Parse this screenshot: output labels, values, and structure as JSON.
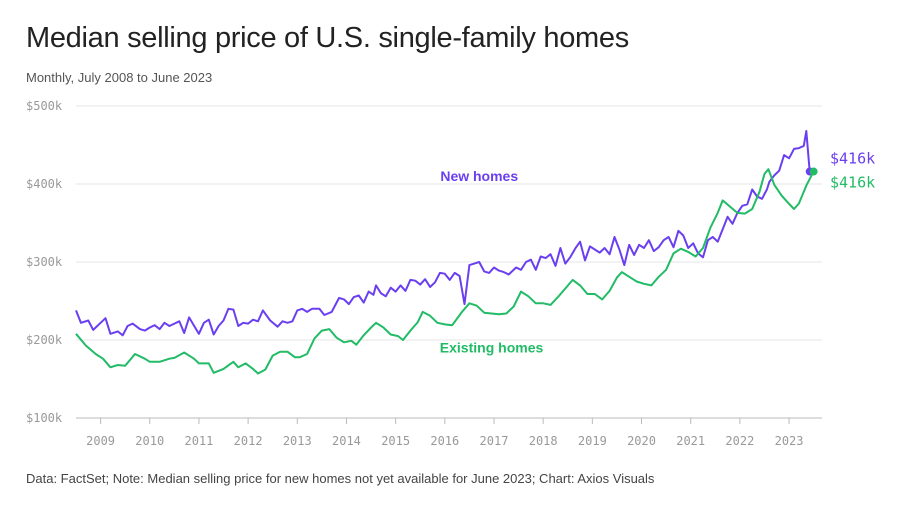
{
  "header": {
    "title": "Median selling price of U.S. single-family homes",
    "subtitle": "Monthly, July 2008 to June 2023"
  },
  "footer": {
    "note": "Data: FactSet; Note: Median selling price for new homes not yet available for June 2023; Chart: Axios Visuals"
  },
  "colors": {
    "new_homes": "#6a3ff0",
    "existing_homes": "#22bb66",
    "grid": "#e6e6e6",
    "axis": "#bbbbbb"
  },
  "chart_data": {
    "type": "line",
    "title": "Median selling price of U.S. single-family homes",
    "subtitle": "Monthly, July 2008 to June 2023",
    "ylim": [
      100,
      500
    ],
    "y_ticks": [
      100,
      200,
      300,
      400,
      500
    ],
    "y_tick_labels": [
      "$100k",
      "$200k",
      "$300k",
      "$400k",
      "$500k"
    ],
    "xlim": [
      2008.5,
      2023.67
    ],
    "x_ticks": [
      2009,
      2010,
      2011,
      2012,
      2013,
      2014,
      2015,
      2016,
      2017,
      2018,
      2019,
      2020,
      2021,
      2022,
      2023
    ],
    "x_tick_labels": [
      "2009",
      "2010",
      "2011",
      "2012",
      "2013",
      "2014",
      "2015",
      "2016",
      "2017",
      "2018",
      "2019",
      "2020",
      "2021",
      "2022",
      "2023"
    ],
    "grid": "horizontal",
    "series": [
      {
        "name": "New homes",
        "label_year": 2016.7,
        "label_value": 404,
        "end_label": "$416k",
        "end_year": 2023.42,
        "end_value": 416,
        "points": [
          [
            2008.5,
            238
          ],
          [
            2008.6,
            222
          ],
          [
            2008.75,
            225
          ],
          [
            2008.85,
            213
          ],
          [
            2009.0,
            222
          ],
          [
            2009.1,
            228
          ],
          [
            2009.2,
            208
          ],
          [
            2009.35,
            211
          ],
          [
            2009.45,
            206
          ],
          [
            2009.55,
            218
          ],
          [
            2009.65,
            221
          ],
          [
            2009.8,
            214
          ],
          [
            2009.9,
            212
          ],
          [
            2010.0,
            216
          ],
          [
            2010.1,
            219
          ],
          [
            2010.2,
            214
          ],
          [
            2010.3,
            222
          ],
          [
            2010.4,
            218
          ],
          [
            2010.5,
            221
          ],
          [
            2010.6,
            224
          ],
          [
            2010.7,
            209
          ],
          [
            2010.8,
            229
          ],
          [
            2010.95,
            213
          ],
          [
            2011.0,
            208
          ],
          [
            2011.1,
            222
          ],
          [
            2011.2,
            226
          ],
          [
            2011.3,
            207
          ],
          [
            2011.4,
            218
          ],
          [
            2011.5,
            225
          ],
          [
            2011.6,
            240
          ],
          [
            2011.7,
            239
          ],
          [
            2011.8,
            218
          ],
          [
            2011.9,
            222
          ],
          [
            2012.0,
            221
          ],
          [
            2012.1,
            226
          ],
          [
            2012.2,
            224
          ],
          [
            2012.3,
            238
          ],
          [
            2012.45,
            225
          ],
          [
            2012.6,
            217
          ],
          [
            2012.7,
            224
          ],
          [
            2012.8,
            222
          ],
          [
            2012.9,
            224
          ],
          [
            2013.0,
            238
          ],
          [
            2013.1,
            240
          ],
          [
            2013.2,
            236
          ],
          [
            2013.3,
            240
          ],
          [
            2013.45,
            240
          ],
          [
            2013.55,
            232
          ],
          [
            2013.7,
            236
          ],
          [
            2013.85,
            254
          ],
          [
            2013.95,
            252
          ],
          [
            2014.05,
            246
          ],
          [
            2014.15,
            255
          ],
          [
            2014.25,
            257
          ],
          [
            2014.35,
            248
          ],
          [
            2014.45,
            262
          ],
          [
            2014.55,
            258
          ],
          [
            2014.6,
            270
          ],
          [
            2014.7,
            260
          ],
          [
            2014.8,
            256
          ],
          [
            2014.9,
            267
          ],
          [
            2015.0,
            262
          ],
          [
            2015.1,
            270
          ],
          [
            2015.2,
            263
          ],
          [
            2015.3,
            277
          ],
          [
            2015.4,
            276
          ],
          [
            2015.5,
            271
          ],
          [
            2015.6,
            278
          ],
          [
            2015.7,
            268
          ],
          [
            2015.8,
            274
          ],
          [
            2015.9,
            286
          ],
          [
            2016.0,
            285
          ],
          [
            2016.1,
            277
          ],
          [
            2016.2,
            286
          ],
          [
            2016.3,
            282
          ],
          [
            2016.4,
            246
          ],
          [
            2016.5,
            296
          ],
          [
            2016.6,
            298
          ],
          [
            2016.7,
            300
          ],
          [
            2016.8,
            288
          ],
          [
            2016.9,
            286
          ],
          [
            2017.0,
            293
          ],
          [
            2017.1,
            289
          ],
          [
            2017.2,
            287
          ],
          [
            2017.3,
            284
          ],
          [
            2017.45,
            293
          ],
          [
            2017.55,
            290
          ],
          [
            2017.65,
            300
          ],
          [
            2017.75,
            303
          ],
          [
            2017.85,
            290
          ],
          [
            2017.95,
            307
          ],
          [
            2018.05,
            305
          ],
          [
            2018.15,
            310
          ],
          [
            2018.25,
            295
          ],
          [
            2018.35,
            318
          ],
          [
            2018.45,
            298
          ],
          [
            2018.55,
            306
          ],
          [
            2018.65,
            317
          ],
          [
            2018.75,
            326
          ],
          [
            2018.85,
            302
          ],
          [
            2018.95,
            320
          ],
          [
            2019.05,
            316
          ],
          [
            2019.15,
            312
          ],
          [
            2019.25,
            318
          ],
          [
            2019.35,
            310
          ],
          [
            2019.45,
            332
          ],
          [
            2019.55,
            316
          ],
          [
            2019.65,
            296
          ],
          [
            2019.75,
            322
          ],
          [
            2019.85,
            309
          ],
          [
            2019.95,
            322
          ],
          [
            2020.05,
            318
          ],
          [
            2020.15,
            328
          ],
          [
            2020.25,
            314
          ],
          [
            2020.35,
            319
          ],
          [
            2020.45,
            328
          ],
          [
            2020.55,
            332
          ],
          [
            2020.65,
            319
          ],
          [
            2020.75,
            340
          ],
          [
            2020.85,
            334
          ],
          [
            2020.95,
            318
          ],
          [
            2021.05,
            324
          ],
          [
            2021.15,
            311
          ],
          [
            2021.25,
            306
          ],
          [
            2021.35,
            328
          ],
          [
            2021.45,
            332
          ],
          [
            2021.55,
            326
          ],
          [
            2021.65,
            342
          ],
          [
            2021.75,
            358
          ],
          [
            2021.85,
            349
          ],
          [
            2021.95,
            363
          ],
          [
            2022.05,
            372
          ],
          [
            2022.15,
            374
          ],
          [
            2022.25,
            393
          ],
          [
            2022.35,
            384
          ],
          [
            2022.45,
            381
          ],
          [
            2022.55,
            393
          ],
          [
            2022.6,
            403
          ],
          [
            2022.7,
            411
          ],
          [
            2022.8,
            417
          ],
          [
            2022.9,
            437
          ],
          [
            2023.0,
            433
          ],
          [
            2023.1,
            445
          ],
          [
            2023.2,
            446
          ],
          [
            2023.3,
            449
          ],
          [
            2023.35,
            468
          ],
          [
            2023.42,
            416
          ]
        ]
      },
      {
        "name": "Existing homes",
        "label_year": 2016.95,
        "label_value": 184,
        "end_label": "$416k",
        "end_year": 2023.5,
        "end_value": 416,
        "points": [
          [
            2008.5,
            208
          ],
          [
            2008.7,
            193
          ],
          [
            2008.9,
            182
          ],
          [
            2009.05,
            176
          ],
          [
            2009.2,
            165
          ],
          [
            2009.35,
            168
          ],
          [
            2009.5,
            167
          ],
          [
            2009.7,
            182
          ],
          [
            2009.9,
            176
          ],
          [
            2010.0,
            172
          ],
          [
            2010.2,
            172
          ],
          [
            2010.4,
            176
          ],
          [
            2010.5,
            177
          ],
          [
            2010.7,
            184
          ],
          [
            2010.9,
            176
          ],
          [
            2011.0,
            170
          ],
          [
            2011.2,
            170
          ],
          [
            2011.3,
            158
          ],
          [
            2011.5,
            163
          ],
          [
            2011.7,
            172
          ],
          [
            2011.8,
            165
          ],
          [
            2011.95,
            170
          ],
          [
            2012.1,
            163
          ],
          [
            2012.2,
            157
          ],
          [
            2012.35,
            162
          ],
          [
            2012.5,
            180
          ],
          [
            2012.65,
            185
          ],
          [
            2012.8,
            185
          ],
          [
            2012.95,
            178
          ],
          [
            2013.05,
            178
          ],
          [
            2013.2,
            182
          ],
          [
            2013.35,
            202
          ],
          [
            2013.5,
            212
          ],
          [
            2013.65,
            214
          ],
          [
            2013.8,
            203
          ],
          [
            2013.95,
            197
          ],
          [
            2014.1,
            199
          ],
          [
            2014.2,
            194
          ],
          [
            2014.35,
            206
          ],
          [
            2014.5,
            216
          ],
          [
            2014.6,
            222
          ],
          [
            2014.75,
            216
          ],
          [
            2014.9,
            207
          ],
          [
            2015.05,
            205
          ],
          [
            2015.15,
            200
          ],
          [
            2015.3,
            212
          ],
          [
            2015.45,
            223
          ],
          [
            2015.55,
            236
          ],
          [
            2015.7,
            231
          ],
          [
            2015.85,
            222
          ],
          [
            2016.0,
            220
          ],
          [
            2016.15,
            219
          ],
          [
            2016.35,
            236
          ],
          [
            2016.5,
            247
          ],
          [
            2016.65,
            244
          ],
          [
            2016.8,
            235
          ],
          [
            2016.95,
            234
          ],
          [
            2017.1,
            233
          ],
          [
            2017.25,
            234
          ],
          [
            2017.4,
            243
          ],
          [
            2017.55,
            262
          ],
          [
            2017.7,
            256
          ],
          [
            2017.85,
            247
          ],
          [
            2018.0,
            247
          ],
          [
            2018.15,
            245
          ],
          [
            2018.3,
            255
          ],
          [
            2018.45,
            266
          ],
          [
            2018.6,
            277
          ],
          [
            2018.75,
            270
          ],
          [
            2018.9,
            259
          ],
          [
            2019.05,
            259
          ],
          [
            2019.2,
            252
          ],
          [
            2019.35,
            263
          ],
          [
            2019.5,
            280
          ],
          [
            2019.6,
            287
          ],
          [
            2019.75,
            281
          ],
          [
            2019.9,
            275
          ],
          [
            2020.05,
            272
          ],
          [
            2020.2,
            270
          ],
          [
            2020.35,
            281
          ],
          [
            2020.5,
            290
          ],
          [
            2020.65,
            311
          ],
          [
            2020.8,
            317
          ],
          [
            2020.95,
            313
          ],
          [
            2021.1,
            307
          ],
          [
            2021.25,
            318
          ],
          [
            2021.4,
            344
          ],
          [
            2021.55,
            363
          ],
          [
            2021.65,
            379
          ],
          [
            2021.8,
            371
          ],
          [
            2021.95,
            363
          ],
          [
            2022.1,
            362
          ],
          [
            2022.25,
            368
          ],
          [
            2022.4,
            390
          ],
          [
            2022.5,
            413
          ],
          [
            2022.58,
            419
          ],
          [
            2022.7,
            399
          ],
          [
            2022.85,
            385
          ],
          [
            2022.95,
            378
          ],
          [
            2023.1,
            368
          ],
          [
            2023.2,
            375
          ],
          [
            2023.35,
            398
          ],
          [
            2023.5,
            416
          ]
        ]
      }
    ]
  }
}
